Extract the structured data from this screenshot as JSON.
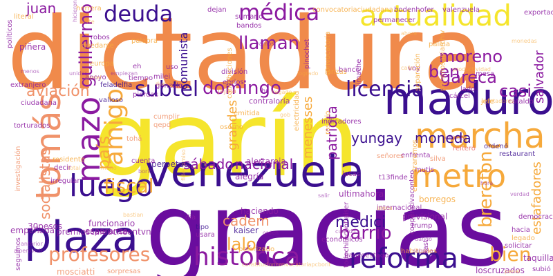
{
  "palette": {
    "orange": "#f08a4b",
    "yellow": "#f5e52c",
    "purple": "#6a0d9e",
    "indigo": "#3b0f8f",
    "magenta": "#a0249e",
    "salmon": "#f0926a",
    "amber": "#f6a93b",
    "violet": "#8b1aa0",
    "pink": "#e86a6a"
  },
  "words": [
    {
      "text": "dictadura",
      "color": "orange"
    },
    {
      "text": "garín",
      "color": "yellow"
    },
    {
      "text": "gracias",
      "color": "purple"
    },
    {
      "text": "venezuela",
      "color": "indigo"
    },
    {
      "text": "maduro",
      "color": "indigo"
    },
    {
      "text": "plaza",
      "color": "indigo"
    },
    {
      "text": "marcha",
      "color": "amber"
    },
    {
      "text": "metro",
      "color": "amber"
    },
    {
      "text": "reforma",
      "color": "indigo"
    },
    {
      "text": "tomás",
      "color": "salmon"
    },
    {
      "text": "actualidad",
      "color": "yellow"
    },
    {
      "text": "histórica",
      "color": "violet"
    },
    {
      "text": "deuda",
      "color": "indigo"
    },
    {
      "text": "médica",
      "color": "violet"
    },
    {
      "text": "luego",
      "color": "indigo"
    },
    {
      "text": "mazo",
      "color": "violet"
    },
    {
      "text": "amigo",
      "color": "amber"
    },
    {
      "text": "subtel",
      "color": "indigo"
    },
    {
      "text": "licencia",
      "color": "indigo"
    },
    {
      "text": "profesores",
      "color": "salmon"
    },
    {
      "text": "fiscal",
      "color": "amber"
    },
    {
      "text": "domingo",
      "color": "violet"
    },
    {
      "text": "llaman",
      "color": "violet"
    },
    {
      "text": "barrio",
      "color": "violet"
    },
    {
      "text": "brereton",
      "color": "amber"
    },
    {
      "text": "país",
      "color": "amber"
    },
    {
      "text": "lalo",
      "color": "amber"
    },
    {
      "text": "bien",
      "color": "amber"
    },
    {
      "text": "moreno",
      "color": "violet"
    },
    {
      "text": "ben",
      "color": "violet"
    },
    {
      "text": "gareca",
      "color": "violet"
    },
    {
      "text": "casi",
      "color": "violet"
    },
    {
      "text": "medici",
      "color": "indigo"
    },
    {
      "text": "sábado",
      "color": "violet"
    },
    {
      "text": "nacional",
      "color": "violet"
    },
    {
      "text": "aviación",
      "color": "salmon"
    },
    {
      "text": "guillermo",
      "color": "violet"
    },
    {
      "text": "juan",
      "color": "violet"
    },
    {
      "text": "moneda",
      "color": "indigo"
    },
    {
      "text": "yungay",
      "color": "indigo"
    },
    {
      "text": "socialistas",
      "color": "salmon"
    },
    {
      "text": "cadem",
      "color": "salmon"
    },
    {
      "text": "patriota",
      "color": "violet"
    },
    {
      "text": "grandes",
      "color": "amber"
    },
    {
      "text": "salvador",
      "color": "violet"
    },
    {
      "text": "estafadores",
      "color": "amber"
    },
    {
      "text": "comunista",
      "color": "indigo"
    },
    {
      "text": "menesses",
      "color": "amber"
    },
    {
      "text": "piñera",
      "color": "violet"
    },
    {
      "text": "mosciatti",
      "color": "salmon"
    },
    {
      "text": "loscruzados",
      "color": "violet"
    },
    {
      "text": "taquilla",
      "color": "violet"
    },
    {
      "text": "ultimahora",
      "color": "violet"
    },
    {
      "text": "previsional",
      "color": "violet"
    },
    {
      "text": "haciendo",
      "color": "violet"
    },
    {
      "text": "kaiser",
      "color": "indigo"
    },
    {
      "text": "borregos",
      "color": "amber"
    },
    {
      "text": "premioscaleucheentvn",
      "color": "violet"
    },
    {
      "text": "30pesos",
      "color": "violet"
    },
    {
      "text": "empeñada",
      "color": "violet"
    },
    {
      "text": "funcionario",
      "color": "violet"
    },
    {
      "text": "esperanza",
      "color": "violet"
    },
    {
      "text": "perpetua",
      "color": "indigo"
    },
    {
      "text": "alegría",
      "color": "violet"
    },
    {
      "text": "alertaroja",
      "color": "violet"
    },
    {
      "text": "contraloría",
      "color": "violet"
    },
    {
      "text": "feladelfia",
      "color": "indigo"
    },
    {
      "text": "valioso",
      "color": "indigo"
    },
    {
      "text": "ciudadana",
      "color": "violet"
    },
    {
      "text": "extranjero",
      "color": "violet"
    },
    {
      "text": "torturados",
      "color": "violet"
    },
    {
      "text": "cumplir",
      "color": "salmon"
    },
    {
      "text": "qepd",
      "color": "salmon"
    },
    {
      "text": "tohá",
      "color": "salmon"
    },
    {
      "text": "cuenta",
      "color": "violet"
    },
    {
      "text": "decir",
      "color": "violet"
    },
    {
      "text": "residente",
      "color": "amber"
    },
    {
      "text": "irregular",
      "color": "violet"
    },
    {
      "text": "investigación",
      "color": "salmon"
    },
    {
      "text": "usara",
      "color": "violet"
    },
    {
      "text": "tipo",
      "color": "indigo"
    },
    {
      "text": "dia",
      "color": "violet"
    },
    {
      "text": "polarizado",
      "color": "amber"
    },
    {
      "text": "sorpresas",
      "color": "salmon"
    },
    {
      "text": "seguimos",
      "color": "violet"
    },
    {
      "text": "bancoestado",
      "color": "violet"
    },
    {
      "text": "cooperativaconteo",
      "color": "violet"
    },
    {
      "text": "hacia",
      "color": "violet"
    },
    {
      "text": "legado",
      "color": "amber"
    },
    {
      "text": "enfrenta",
      "color": "violet"
    },
    {
      "text": "reiteró",
      "color": "pink"
    },
    {
      "text": "ordenó",
      "color": "indigo"
    },
    {
      "text": "restaurant",
      "color": "indigo"
    },
    {
      "text": "silva",
      "color": "salmon"
    },
    {
      "text": "mutis",
      "color": "violet"
    },
    {
      "text": "señores",
      "color": "salmon"
    },
    {
      "text": "t13finde",
      "color": "violet"
    },
    {
      "text": "encontraremos",
      "color": "amber"
    },
    {
      "text": "lucas",
      "color": "violet"
    },
    {
      "text": "trump",
      "color": "violet"
    },
    {
      "text": "habituales",
      "color": "amber"
    },
    {
      "text": "subió",
      "color": "violet"
    },
    {
      "text": "kast",
      "color": "violet"
    },
    {
      "text": "todochilecontiaiser",
      "color": "violet"
    },
    {
      "text": "gonzalo",
      "color": "violet"
    },
    {
      "text": "pierdas",
      "color": "violet"
    },
    {
      "text": "tiempo",
      "color": "violet"
    },
    {
      "text": "apoyo",
      "color": "violet"
    },
    {
      "text": "europa",
      "color": "amber"
    },
    {
      "text": "milei",
      "color": "violet"
    },
    {
      "text": "uso",
      "color": "violet"
    },
    {
      "text": "división",
      "color": "violet"
    },
    {
      "text": "ebrios",
      "color": "violet"
    },
    {
      "text": "jajaja",
      "color": "salmon"
    },
    {
      "text": "hr",
      "color": "violet"
    },
    {
      "text": "pinochet",
      "color": "violet"
    },
    {
      "text": "convocatoria",
      "color": "amber"
    },
    {
      "text": "banco",
      "color": "violet"
    },
    {
      "text": "limache",
      "color": "violet"
    },
    {
      "text": "voy",
      "color": "violet"
    },
    {
      "text": "mesa",
      "color": "violet"
    },
    {
      "text": "lado",
      "color": "violet"
    },
    {
      "text": "cárcel",
      "color": "violet"
    },
    {
      "text": "jefe",
      "color": "amber"
    },
    {
      "text": "cataldo",
      "color": "violet"
    },
    {
      "text": "bodenhofer",
      "color": "violet"
    },
    {
      "text": "valenzuela",
      "color": "violet"
    },
    {
      "text": "permanecer",
      "color": "violet"
    },
    {
      "text": "palma",
      "color": "amber"
    },
    {
      "text": "sumario",
      "color": "violet"
    },
    {
      "text": "bandos",
      "color": "violet"
    },
    {
      "text": "dejan",
      "color": "violet"
    },
    {
      "text": "robos",
      "color": "violet"
    },
    {
      "text": "palabra",
      "color": "amber"
    },
    {
      "text": "quedarse",
      "color": "amber"
    },
    {
      "text": "literal",
      "color": "amber"
    },
    {
      "text": "herrera",
      "color": "amber"
    },
    {
      "text": "políticos",
      "color": "violet"
    },
    {
      "text": "eh",
      "color": "violet"
    },
    {
      "text": "contribuciones",
      "color": "amber"
    },
    {
      "text": "emitida",
      "color": "amber"
    },
    {
      "text": "osorno",
      "color": "amber"
    },
    {
      "text": "separación",
      "color": "amber"
    },
    {
      "text": "ponenosabiarchiv",
      "color": "amber"
    },
    {
      "text": "lanzas",
      "color": "amber"
    },
    {
      "text": "exportación",
      "color": "violet"
    },
    {
      "text": "convocatoriaciudadana",
      "color": "amber"
    },
    {
      "text": "rosario",
      "color": "amber"
    },
    {
      "text": "electricidad",
      "color": "amber"
    },
    {
      "text": "indicadores",
      "color": "violet"
    },
    {
      "text": "democracia",
      "color": "violet"
    },
    {
      "text": "solicitar",
      "color": "violet"
    },
    {
      "text": "internacional",
      "color": "violet"
    },
    {
      "text": "económicos",
      "color": "violet"
    },
    {
      "text": "constitucionconvocatoriapcborit",
      "color": "amber"
    },
    {
      "text": "alperovich",
      "color": "violet"
    },
    {
      "text": "sabrina",
      "color": "violet"
    },
    {
      "text": "orden",
      "color": "violet"
    },
    {
      "text": "salir",
      "color": "violet"
    },
    {
      "text": "fideicomiso",
      "color": "amber"
    },
    {
      "text": "alentadores",
      "color": "amber"
    },
    {
      "text": "productividad",
      "color": "amber"
    },
    {
      "text": "logrado",
      "color": "amber"
    },
    {
      "text": "llegado",
      "color": "amber"
    },
    {
      "text": "gob",
      "color": "amber"
    },
    {
      "text": "dejado",
      "color": "violet"
    },
    {
      "text": "verdad",
      "color": "violet"
    },
    {
      "text": "anterior",
      "color": "violet"
    },
    {
      "text": "unidos",
      "color": "violet"
    },
    {
      "text": "arena",
      "color": "amber"
    },
    {
      "text": "monedas",
      "color": "amber"
    },
    {
      "text": "hora",
      "color": "violet"
    },
    {
      "text": "vamos",
      "color": "violet"
    },
    {
      "text": "corte",
      "color": "amber"
    },
    {
      "text": "calle",
      "color": "amber"
    },
    {
      "text": "menos",
      "color": "violet"
    },
    {
      "text": "cuando",
      "color": "violet"
    },
    {
      "text": "penal",
      "color": "amber"
    },
    {
      "text": "hicieron",
      "color": "violet"
    },
    {
      "text": "total",
      "color": "amber"
    },
    {
      "text": "mano",
      "color": "amber"
    },
    {
      "text": "bastian",
      "color": "amber"
    },
    {
      "text": "daniel",
      "color": "amber"
    },
    {
      "text": "dueño",
      "color": "amber"
    },
    {
      "text": "boric",
      "color": "violet"
    },
    {
      "text": "ahora",
      "color": "amber"
    },
    {
      "text": "empiezan",
      "color": "violet"
    },
    {
      "text": "dando",
      "color": "violet"
    }
  ]
}
